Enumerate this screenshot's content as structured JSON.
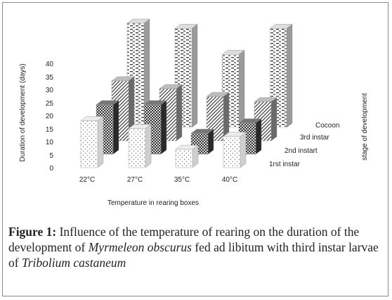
{
  "chart_data": {
    "type": "bar",
    "subtype": "3d-column",
    "title": "",
    "xlabel": "Temperature in rearing boxes",
    "ylabel": "Duration of development (days)",
    "zlabel": "stage of development",
    "ylim": [
      0,
      40
    ],
    "yticks": [
      "0",
      "5",
      "10",
      "15",
      "20",
      "25",
      "30",
      "35",
      "40"
    ],
    "categories": [
      "22°C",
      "27°C",
      "35°C",
      "40°C"
    ],
    "series": [
      {
        "name": "1rst instar",
        "values": [
          18,
          15,
          7,
          12
        ]
      },
      {
        "name": "2nd instart",
        "values": [
          19,
          19,
          8,
          12
        ]
      },
      {
        "name": "3rd instar",
        "values": [
          23,
          20,
          17,
          15
        ]
      },
      {
        "name": "Cocoon",
        "values": [
          40,
          38,
          28,
          38
        ]
      }
    ],
    "grid": false,
    "legend": "series labels along depth axis (right)"
  },
  "caption": {
    "figure_label": "Figure 1:",
    "text_1": " Influence of the temperature of rearing on the duration of the development of ",
    "species": "Myrmeleon obscurus",
    "text_2": " fed ad libitum with third instar larvae of ",
    "prey": "Tribolium castaneum"
  }
}
